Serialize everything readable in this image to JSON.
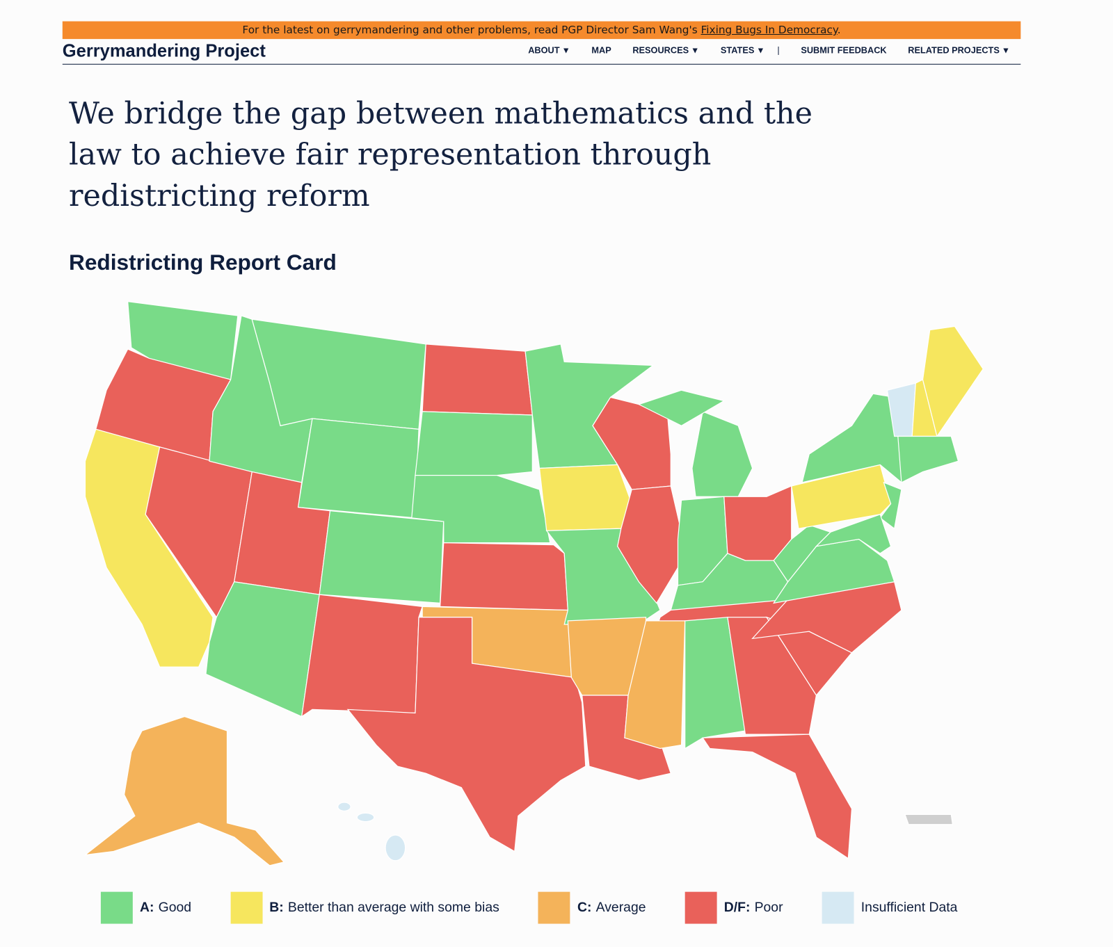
{
  "banner": {
    "text": "For the latest on gerrymandering and other problems, read PGP Director Sam Wang's ",
    "link": "Fixing Bugs In Democracy",
    "suffix": "."
  },
  "header": {
    "logo": "Gerrymandering Project",
    "nav": [
      "ABOUT",
      "MAP",
      "RESOURCES",
      "STATES",
      "SUBMIT FEEDBACK",
      "RELATED PROJECTS"
    ]
  },
  "headline": "We bridge the gap between mathematics and the law to achieve fair representation through redistricting reform",
  "section_title": "Redistricting Report Card",
  "legend": [
    {
      "grade": "A:",
      "text": "Good",
      "color": "#79db88"
    },
    {
      "grade": "B:",
      "text": "Better than average with some bias",
      "color": "#f6e65e"
    },
    {
      "grade": "C:",
      "text": "Average",
      "color": "#f4b35a"
    },
    {
      "grade": "D/F:",
      "text": "Poor",
      "color": "#e9615a"
    },
    {
      "text": "Insufficient Data",
      "color": "#d6e9f3"
    }
  ]
}
